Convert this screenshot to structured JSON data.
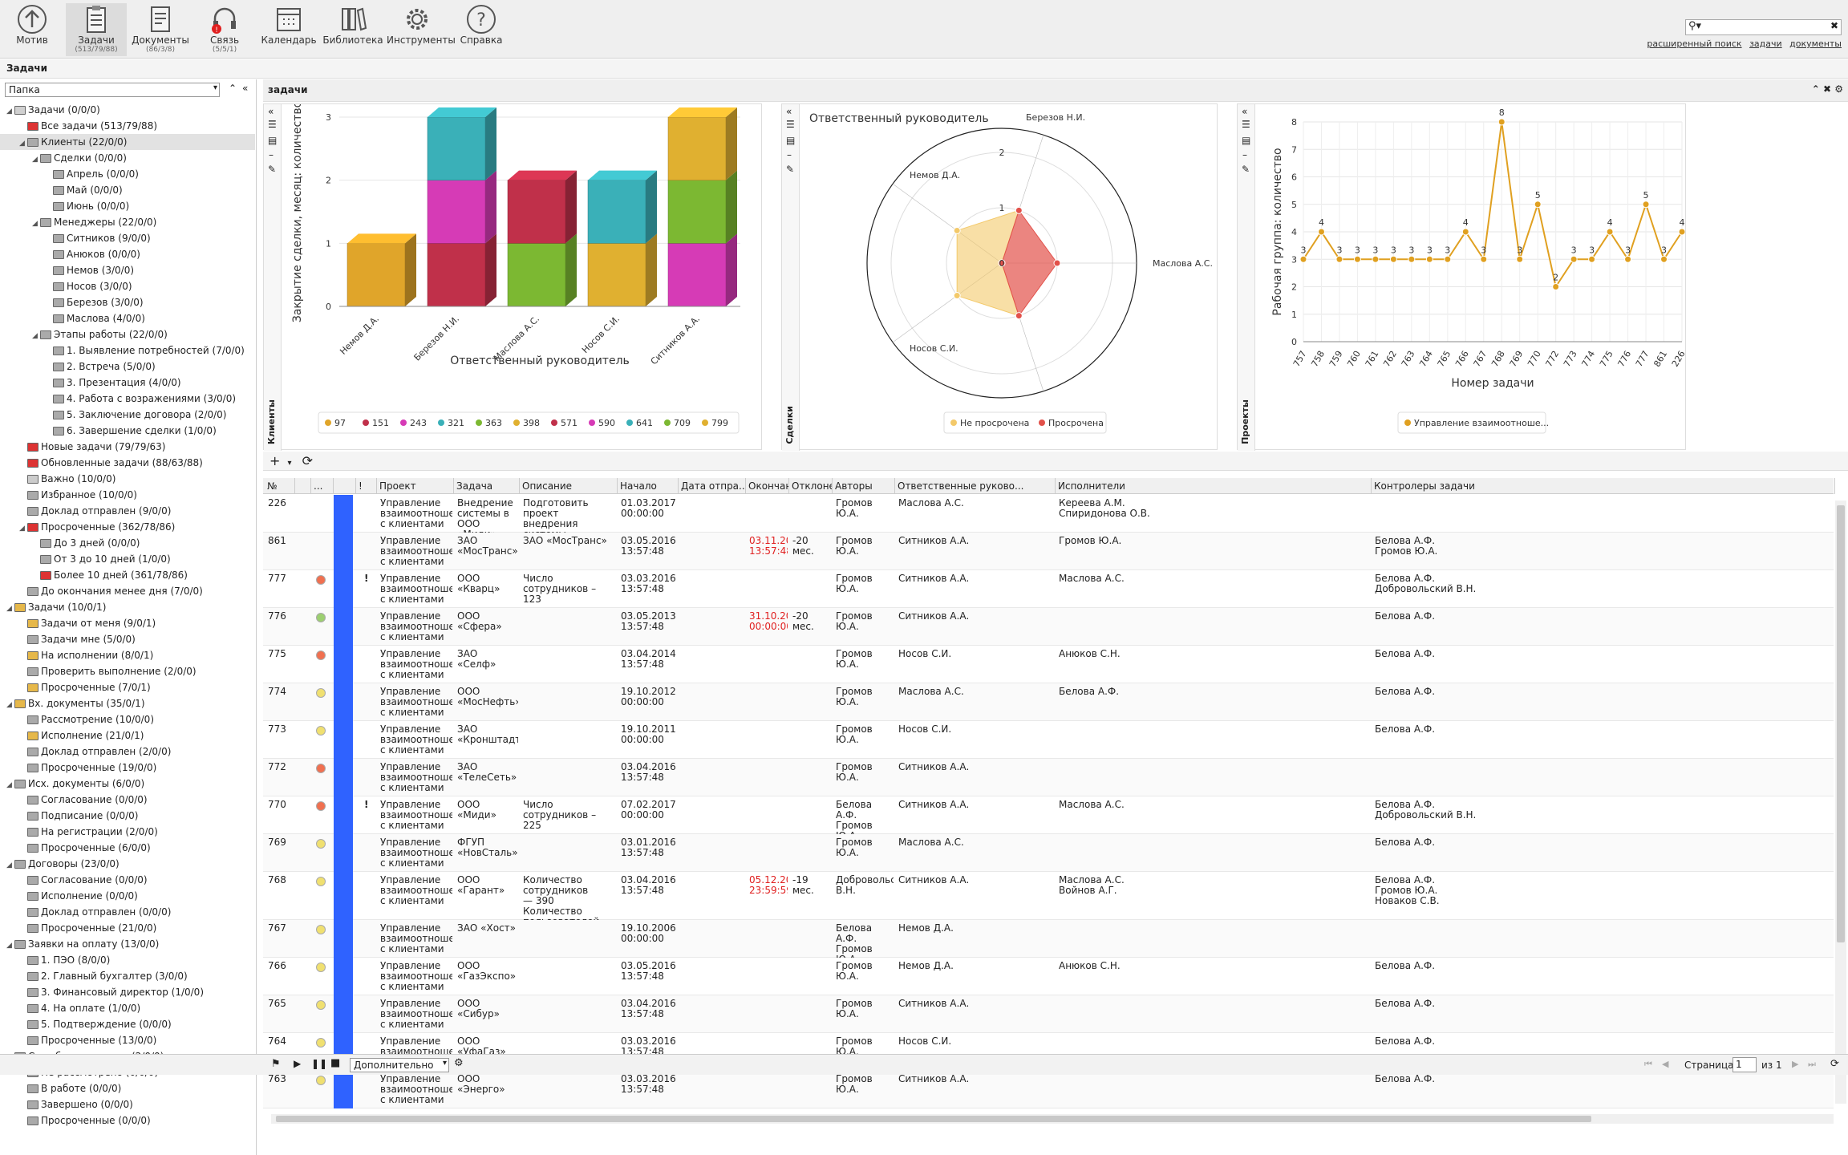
{
  "toolbar": {
    "items": [
      {
        "label": "Мотив",
        "sub": ""
      },
      {
        "label": "Задачи",
        "sub": "(513/79/88)"
      },
      {
        "label": "Документы",
        "sub": "(86/3/8)"
      },
      {
        "label": "Связь",
        "sub": "(5/5/1)"
      },
      {
        "label": "Календарь",
        "sub": ""
      },
      {
        "label": "Библиотека",
        "sub": ""
      },
      {
        "label": "Инструменты",
        "sub": ""
      },
      {
        "label": "Справка",
        "sub": ""
      }
    ],
    "links": [
      "расширенный поиск",
      "задачи",
      "документы"
    ]
  },
  "app_title": "Задачи",
  "folder_select": "Папка",
  "tree": [
    {
      "l": 0,
      "t": "Задачи (0/0/0)",
      "c": "#d0d0d0"
    },
    {
      "l": 1,
      "t": "Все задачи (513/79/88)",
      "c": "#d33"
    },
    {
      "l": 1,
      "t": "Клиенты (22/0/0)",
      "c": "#aaa",
      "sel": true
    },
    {
      "l": 2,
      "t": "Сделки (0/0/0)",
      "c": "#aaa"
    },
    {
      "l": 3,
      "t": "Апрель (0/0/0)",
      "c": "#aaa"
    },
    {
      "l": 3,
      "t": "Май (0/0/0)",
      "c": "#aaa"
    },
    {
      "l": 3,
      "t": "Июнь (0/0/0)",
      "c": "#aaa"
    },
    {
      "l": 2,
      "t": "Менеджеры (22/0/0)",
      "c": "#aaa"
    },
    {
      "l": 3,
      "t": "Ситников (9/0/0)",
      "c": "#aaa"
    },
    {
      "l": 3,
      "t": "Анюков (0/0/0)",
      "c": "#aaa"
    },
    {
      "l": 3,
      "t": "Немов (3/0/0)",
      "c": "#aaa"
    },
    {
      "l": 3,
      "t": "Носов (3/0/0)",
      "c": "#aaa"
    },
    {
      "l": 3,
      "t": "Березов (3/0/0)",
      "c": "#aaa"
    },
    {
      "l": 3,
      "t": "Маслова (4/0/0)",
      "c": "#aaa"
    },
    {
      "l": 2,
      "t": "Этапы работы (22/0/0)",
      "c": "#aaa"
    },
    {
      "l": 3,
      "t": "1. Выявление потребностей (7/0/0)",
      "c": "#aaa"
    },
    {
      "l": 3,
      "t": "2. Встреча (5/0/0)",
      "c": "#aaa"
    },
    {
      "l": 3,
      "t": "3. Презентация (4/0/0)",
      "c": "#aaa"
    },
    {
      "l": 3,
      "t": "4. Работа с возражениями (3/0/0)",
      "c": "#aaa"
    },
    {
      "l": 3,
      "t": "5. Заключение договора (2/0/0)",
      "c": "#aaa"
    },
    {
      "l": 3,
      "t": "6. Завершение сделки (1/0/0)",
      "c": "#aaa"
    },
    {
      "l": 1,
      "t": "Новые задачи (79/79/63)",
      "c": "#d33"
    },
    {
      "l": 1,
      "t": "Обновленные задачи (88/63/88)",
      "c": "#d33"
    },
    {
      "l": 1,
      "t": "Важно (10/0/0)",
      "c": "#ccc"
    },
    {
      "l": 1,
      "t": "Избранное (10/0/0)",
      "c": "#aaa"
    },
    {
      "l": 1,
      "t": "Доклад отправлен (9/0/0)",
      "c": "#aaa"
    },
    {
      "l": 1,
      "t": "Просроченные (362/78/86)",
      "c": "#d33"
    },
    {
      "l": 2,
      "t": "До 3 дней (0/0/0)",
      "c": "#aaa"
    },
    {
      "l": 2,
      "t": "От 3 до 10 дней (1/0/0)",
      "c": "#aaa"
    },
    {
      "l": 2,
      "t": "Более 10 дней (361/78/86)",
      "c": "#d33"
    },
    {
      "l": 1,
      "t": "До окончания менее дня (7/0/0)",
      "c": "#aaa"
    },
    {
      "l": 0,
      "t": "Задачи (10/0/1)",
      "c": "#e6b84a"
    },
    {
      "l": 1,
      "t": "Задачи от меня (9/0/1)",
      "c": "#e6b84a"
    },
    {
      "l": 1,
      "t": "Задачи мне (5/0/0)",
      "c": "#aaa"
    },
    {
      "l": 1,
      "t": "На исполнении (8/0/1)",
      "c": "#e6b84a"
    },
    {
      "l": 1,
      "t": "Проверить выполнение (2/0/0)",
      "c": "#aaa"
    },
    {
      "l": 1,
      "t": "Просроченные (7/0/1)",
      "c": "#e6b84a"
    },
    {
      "l": 0,
      "t": "Вх. документы (35/0/1)",
      "c": "#e6b84a"
    },
    {
      "l": 1,
      "t": "Рассмотрение (10/0/0)",
      "c": "#aaa"
    },
    {
      "l": 1,
      "t": "Исполнение (21/0/1)",
      "c": "#e6b84a"
    },
    {
      "l": 1,
      "t": "Доклад отправлен (2/0/0)",
      "c": "#aaa"
    },
    {
      "l": 1,
      "t": "Просроченные (19/0/0)",
      "c": "#aaa"
    },
    {
      "l": 0,
      "t": "Исх. документы (6/0/0)",
      "c": "#aaa"
    },
    {
      "l": 1,
      "t": "Согласование (0/0/0)",
      "c": "#aaa"
    },
    {
      "l": 1,
      "t": "Подписание (0/0/0)",
      "c": "#aaa"
    },
    {
      "l": 1,
      "t": "На регистрации (2/0/0)",
      "c": "#aaa"
    },
    {
      "l": 1,
      "t": "Просроченные (6/0/0)",
      "c": "#aaa"
    },
    {
      "l": 0,
      "t": "Договоры (23/0/0)",
      "c": "#aaa"
    },
    {
      "l": 1,
      "t": "Согласование (0/0/0)",
      "c": "#aaa"
    },
    {
      "l": 1,
      "t": "Исполнение (0/0/0)",
      "c": "#aaa"
    },
    {
      "l": 1,
      "t": "Доклад отправлен (0/0/0)",
      "c": "#aaa"
    },
    {
      "l": 1,
      "t": "Просроченные (21/0/0)",
      "c": "#aaa"
    },
    {
      "l": 0,
      "t": "Заявки на оплату (13/0/0)",
      "c": "#aaa"
    },
    {
      "l": 1,
      "t": "1. ПЭО (8/0/0)",
      "c": "#aaa"
    },
    {
      "l": 1,
      "t": "2. Главный бухгалтер (3/0/0)",
      "c": "#aaa"
    },
    {
      "l": 1,
      "t": "3. Финансовый директор (1/0/0)",
      "c": "#aaa"
    },
    {
      "l": 1,
      "t": "4. На оплате (1/0/0)",
      "c": "#aaa"
    },
    {
      "l": 1,
      "t": "5. Подтверждение (0/0/0)",
      "c": "#aaa"
    },
    {
      "l": 1,
      "t": "Просроченные (13/0/0)",
      "c": "#aaa"
    },
    {
      "l": 0,
      "t": "Служба поддержки (2/0/0)",
      "c": "#aaa"
    },
    {
      "l": 1,
      "t": "Не рассмотрено (0/0/0)",
      "c": "#aaa"
    },
    {
      "l": 1,
      "t": "В работе (0/0/0)",
      "c": "#aaa"
    },
    {
      "l": 1,
      "t": "Завершено (0/0/0)",
      "c": "#aaa"
    },
    {
      "l": 1,
      "t": "Просроченные (0/0/0)",
      "c": "#aaa"
    }
  ],
  "main_title": "задачи",
  "panels": {
    "p1_label": "Клиенты",
    "p2_label": "Сделки",
    "p3_label": "Проекты"
  },
  "chart_data": [
    {
      "type": "bar",
      "stacked": true,
      "title": "",
      "xlabel": "Ответственный руководитель",
      "ylabel": "Закрытие сделки, месяц: количество",
      "categories": [
        "Немов Д.А.",
        "Березов Н.И.",
        "Маслова А.С.",
        "Носов С.И.",
        "Ситников А.А."
      ],
      "ylim": [
        0,
        3
      ],
      "yticks": [
        "0",
        "1",
        "2",
        "3"
      ],
      "series": [
        {
          "name": "97",
          "color": "#e0a52a",
          "values": [
            1,
            0,
            0,
            0,
            0
          ]
        },
        {
          "name": "151",
          "color": "#c0304a",
          "values": [
            0,
            1,
            0,
            0,
            0
          ]
        },
        {
          "name": "243",
          "color": "#d63bb6",
          "values": [
            0,
            1,
            0,
            0,
            0
          ]
        },
        {
          "name": "321",
          "color": "#3ab0b8",
          "values": [
            0,
            1,
            0,
            0,
            0
          ]
        },
        {
          "name": "363",
          "color": "#7cb832",
          "values": [
            0,
            0,
            1,
            0,
            0
          ]
        },
        {
          "name": "398",
          "color": "#e0b030",
          "values": [
            0,
            0,
            0,
            1,
            0
          ]
        },
        {
          "name": "571",
          "color": "#c0304a",
          "values": [
            0,
            0,
            1,
            0,
            0
          ]
        },
        {
          "name": "590",
          "color": "#d63bb6",
          "values": [
            0,
            0,
            0,
            0,
            1
          ]
        },
        {
          "name": "641",
          "color": "#3ab0b8",
          "values": [
            0,
            0,
            0,
            1,
            0
          ]
        },
        {
          "name": "709",
          "color": "#7cb832",
          "values": [
            0,
            0,
            0,
            0,
            1
          ]
        },
        {
          "name": "799",
          "color": "#e0b030",
          "values": [
            0,
            0,
            0,
            0,
            1
          ]
        }
      ]
    },
    {
      "type": "radar",
      "title": "Ответственный руководитель",
      "axes": [
        "Березов Н.И.",
        "Маслова А.С.",
        "",
        "Носов С.И.",
        "Немов Д.А."
      ],
      "rticks": [
        "0",
        "1",
        "2"
      ],
      "rmax": 2,
      "series": [
        {
          "name": "Не просрочена",
          "color": "#f3c96a",
          "values": [
            1,
            0,
            1,
            1,
            1
          ]
        },
        {
          "name": "Просрочена",
          "color": "#e2514a",
          "values": [
            1,
            1,
            1,
            0,
            0
          ]
        }
      ]
    },
    {
      "type": "line",
      "title": "",
      "xlabel": "Номер задачи",
      "ylabel": "Рабочая группа: количество",
      "ylim": [
        0,
        8
      ],
      "yticks": [
        "0",
        "1",
        "2",
        "3",
        "4",
        "5",
        "6",
        "7",
        "8"
      ],
      "x": [
        "757",
        "758",
        "759",
        "760",
        "761",
        "762",
        "763",
        "764",
        "765",
        "766",
        "767",
        "768",
        "769",
        "770",
        "772",
        "773",
        "774",
        "775",
        "776",
        "777",
        "861",
        "226"
      ],
      "series": [
        {
          "name": "Управление взаимоотноше...",
          "color": "#e0a020",
          "values": [
            3,
            4,
            3,
            3,
            3,
            3,
            3,
            3,
            3,
            4,
            3,
            8,
            3,
            5,
            2,
            3,
            3,
            4,
            3,
            5,
            3,
            4
          ]
        }
      ]
    }
  ],
  "grid": {
    "columns": [
      "№",
      "",
      "...",
      "",
      "!",
      "Проект",
      "Задача",
      "Описание",
      "Начало",
      "Дата отпра...",
      "Окончан...",
      "Отклоне...",
      "Авторы",
      "Ответственные руково...",
      "Исполнители",
      "Контролеры задачи"
    ],
    "rows": [
      {
        "n": "226",
        "dot": "",
        "excl": "",
        "proj": "Управление\nвзаимоотношениями\nс клиентами",
        "task": "Внедрение\nсистемы в ООО\n«Миди»",
        "desc": "Подготовить проект\nвнедрения системы",
        "start": "01.03.2017\n00:00:00",
        "sent": "",
        "end": "",
        "dev": "",
        "authors": "Громов Ю.А.",
        "resp": "Маслова А.С.",
        "exec": "Кереева А.М.\nСпиридонова О.В.",
        "ctrl": ""
      },
      {
        "n": "861",
        "dot": "",
        "excl": "",
        "proj": "Управление\nвзаимоотношениями\nс клиентами",
        "task": "ЗАО «МосТранс»",
        "desc": "ЗАО «МосТранс»",
        "start": "03.05.2016\n13:57:48",
        "sent": "",
        "end": "03.11.20...\n13:57:48",
        "dev": "-20 мес.",
        "authors": "Громов Ю.А.",
        "resp": "Ситников А.А.",
        "exec": "Громов Ю.А.",
        "ctrl": "Белова А.Ф.\nГромов Ю.А."
      },
      {
        "n": "777",
        "dot": "#f07050",
        "excl": "!",
        "proj": "Управление\nвзаимоотношениями\nс клиентами",
        "task": "ООО «Кварц»",
        "desc": "Число сотрудников – 123",
        "start": "03.03.2016\n13:57:48",
        "sent": "",
        "end": "",
        "dev": "",
        "authors": "Громов Ю.А.",
        "resp": "Ситников А.А.",
        "exec": "Маслова А.С.",
        "ctrl": "Белова А.Ф.\nДобровольский В.Н."
      },
      {
        "n": "776",
        "dot": "#9ccf70",
        "excl": "",
        "proj": "Управление\nвзаимоотношениями\nс клиентами",
        "task": "ООО «Сфера»",
        "desc": "",
        "start": "03.05.2013\n13:57:48",
        "sent": "",
        "end": "31.10.20...\n00:00:00",
        "dev": "-20 мес.",
        "authors": "Громов Ю.А.",
        "resp": "Ситников А.А.",
        "exec": "",
        "ctrl": "Белова А.Ф."
      },
      {
        "n": "775",
        "dot": "#f07050",
        "excl": "",
        "proj": "Управление\nвзаимоотношениями\nс клиентами",
        "task": "ЗАО «Селф»",
        "desc": "",
        "start": "03.04.2014\n13:57:48",
        "sent": "",
        "end": "",
        "dev": "",
        "authors": "Громов Ю.А.",
        "resp": "Носов С.И.",
        "exec": "Анюков С.Н.",
        "ctrl": "Белова А.Ф."
      },
      {
        "n": "774",
        "dot": "#f0e070",
        "excl": "",
        "proj": "Управление\nвзаимоотношениями\nс клиентами",
        "task": "ООО «МосНефть»",
        "desc": "",
        "start": "19.10.2012\n00:00:00",
        "sent": "",
        "end": "",
        "dev": "",
        "authors": "Громов Ю.А.",
        "resp": "Маслова А.С.",
        "exec": "Белова А.Ф.",
        "ctrl": "Белова А.Ф."
      },
      {
        "n": "773",
        "dot": "#f0e070",
        "excl": "",
        "proj": "Управление\nвзаимоотношениями\nс клиентами",
        "task": "ЗАО «Кронштадт»",
        "desc": "",
        "start": "19.10.2011\n00:00:00",
        "sent": "",
        "end": "",
        "dev": "",
        "authors": "Громов Ю.А.",
        "resp": "Носов С.И.",
        "exec": "",
        "ctrl": "Белова А.Ф."
      },
      {
        "n": "772",
        "dot": "#f07050",
        "excl": "",
        "proj": "Управление\nвзаимоотношениями\nс клиентами",
        "task": "ЗАО «ТелеСеть»",
        "desc": "",
        "start": "03.04.2016\n13:57:48",
        "sent": "",
        "end": "",
        "dev": "",
        "authors": "Громов Ю.А.",
        "resp": "Ситников А.А.",
        "exec": "",
        "ctrl": ""
      },
      {
        "n": "770",
        "dot": "#f07050",
        "excl": "!",
        "proj": "Управление\nвзаимоотношениями\nс клиентами",
        "task": "ООО «Миди»",
        "desc": "Число сотрудников – 225",
        "start": "07.02.2017\n00:00:00",
        "sent": "",
        "end": "",
        "dev": "",
        "authors": "Белова А.Ф.\nГромов Ю.А.",
        "resp": "Ситников А.А.",
        "exec": "Маслова А.С.",
        "ctrl": "Белова А.Ф.\nДобровольский В.Н."
      },
      {
        "n": "769",
        "dot": "#f0e070",
        "excl": "",
        "proj": "Управление\nвзаимоотношениями\nс клиентами",
        "task": "ФГУП «НовСталь»",
        "desc": "",
        "start": "03.01.2016\n13:57:48",
        "sent": "",
        "end": "",
        "dev": "",
        "authors": "Громов Ю.А.",
        "resp": "Маслова А.С.",
        "exec": "",
        "ctrl": "Белова А.Ф."
      },
      {
        "n": "768",
        "dot": "#f0e070",
        "excl": "",
        "proj": "Управление\nвзаимоотношениями\nс клиентами",
        "task": "ООО «Гарант»",
        "desc": "Количество сотрудников\n— 390\nКоличество\nпользователей — 320",
        "start": "03.04.2016\n13:57:48",
        "sent": "",
        "end": "05.12.20...\n23:59:59",
        "dev": "-19 мес.",
        "authors": "Добровольский\nВ.Н.",
        "resp": "Ситников А.А.",
        "exec": "Маслова А.С.\nВойнов А.Г.",
        "ctrl": "Белова А.Ф.\nГромов Ю.А.\nНоваков С.В."
      },
      {
        "n": "767",
        "dot": "#f0e070",
        "excl": "",
        "proj": "Управление\nвзаимоотношениями\nс клиентами",
        "task": "ЗАО «Хост»",
        "desc": "",
        "start": "19.10.2006\n00:00:00",
        "sent": "",
        "end": "",
        "dev": "",
        "authors": "Белова А.Ф.\nГромов Ю.А.",
        "resp": "Немов Д.А.",
        "exec": "",
        "ctrl": ""
      },
      {
        "n": "766",
        "dot": "#f0e070",
        "excl": "",
        "proj": "Управление\nвзаимоотношениями\nс клиентами",
        "task": "ООО «ГазЭкспо»",
        "desc": "",
        "start": "03.05.2016\n13:57:48",
        "sent": "",
        "end": "",
        "dev": "",
        "authors": "Громов Ю.А.",
        "resp": "Немов Д.А.",
        "exec": "Анюков С.Н.",
        "ctrl": "Белова А.Ф."
      },
      {
        "n": "765",
        "dot": "#f0e070",
        "excl": "",
        "proj": "Управление\nвзаимоотношениями\nс клиентами",
        "task": "ООО «Сибур»",
        "desc": "",
        "start": "03.04.2016\n13:57:48",
        "sent": "",
        "end": "",
        "dev": "",
        "authors": "Громов Ю.А.",
        "resp": "Ситников А.А.",
        "exec": "",
        "ctrl": "Белова А.Ф."
      },
      {
        "n": "764",
        "dot": "#f0e070",
        "excl": "",
        "proj": "Управление\nвзаимоотношениями\nс клиентами",
        "task": "ООО «УфаГаз»",
        "desc": "",
        "start": "03.03.2016\n13:57:48",
        "sent": "",
        "end": "",
        "dev": "",
        "authors": "Громов Ю.А.",
        "resp": "Носов С.И.",
        "exec": "",
        "ctrl": "Белова А.Ф."
      },
      {
        "n": "763",
        "dot": "#f0e070",
        "excl": "",
        "proj": "Управление\nвзаимоотношениями\nс клиентами",
        "task": "ООО «Энерго»",
        "desc": "",
        "start": "03.03.2016\n13:57:48",
        "sent": "",
        "end": "",
        "dev": "",
        "authors": "Громов Ю.А.",
        "resp": "Ситников А.А.",
        "exec": "",
        "ctrl": "Белова А.Ф."
      }
    ]
  },
  "bottom": {
    "select": "Дополнительно",
    "page_label": "Страница",
    "page": "1",
    "of": "из 1"
  }
}
